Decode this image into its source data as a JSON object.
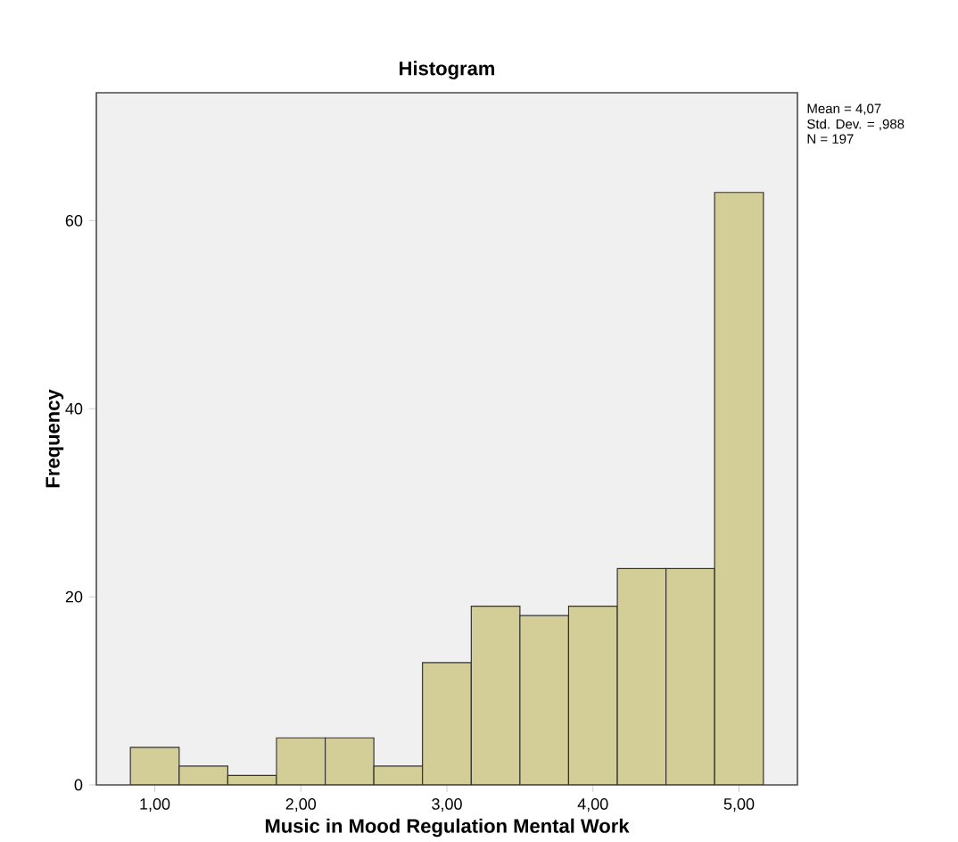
{
  "chart_data": {
    "type": "histogram",
    "title": "Histogram",
    "xlabel": "Music in Mood Regulation Mental Work",
    "ylabel": "Frequency",
    "bins": [
      0.833,
      1.167,
      1.5,
      1.833,
      2.167,
      2.5,
      2.833,
      3.167,
      3.5,
      3.833,
      4.167,
      4.5,
      4.833,
      5.167
    ],
    "values": [
      4,
      2,
      1,
      5,
      5,
      2,
      13,
      19,
      18,
      19,
      23,
      23,
      63
    ],
    "color": "#d3ce97",
    "xlim": [
      0.6,
      5.4
    ],
    "ylim": [
      0,
      73.6
    ],
    "xticks": [
      {
        "value": 1,
        "label": "1,00"
      },
      {
        "value": 2,
        "label": "2,00"
      },
      {
        "value": 3,
        "label": "3,00"
      },
      {
        "value": 4,
        "label": "4,00"
      },
      {
        "value": 5,
        "label": "5,00"
      }
    ],
    "yticks": [
      0,
      20,
      40,
      60
    ],
    "grid": false,
    "annotations": [
      "Mean = 4,07",
      "Std. Dev. = ,988",
      "N = 197"
    ]
  }
}
